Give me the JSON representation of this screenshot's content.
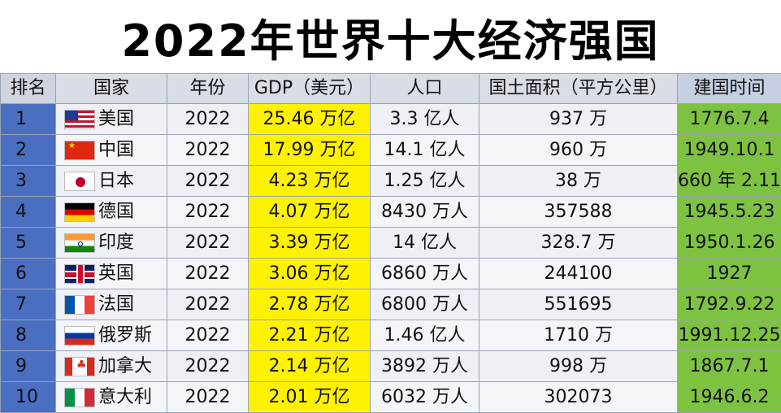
{
  "title": "2022年世界十大经济强国",
  "headers": {
    "rank": "排名",
    "country": "国家",
    "year": "年份",
    "gdp": "GDP（美元）",
    "population": "人口",
    "area": "国土面积（平方公里）",
    "founded": "建国时间"
  },
  "rows": [
    {
      "rank": "1",
      "flag": "us-flag-icon",
      "country": "美国",
      "year": "2022",
      "gdp": "25.46 万亿",
      "population": "3.3 亿人",
      "area": "937 万",
      "founded": "1776.7.4"
    },
    {
      "rank": "2",
      "flag": "cn-flag-icon",
      "country": "中国",
      "year": "2022",
      "gdp": "17.99 万亿",
      "population": "14.1 亿人",
      "area": "960 万",
      "founded": "1949.10.1"
    },
    {
      "rank": "3",
      "flag": "jp-flag-icon",
      "country": "日本",
      "year": "2022",
      "gdp": "4.23 万亿",
      "population": "1.25 亿人",
      "area": "38 万",
      "founded": "660 年 2.11"
    },
    {
      "rank": "4",
      "flag": "de-flag-icon",
      "country": "德国",
      "year": "2022",
      "gdp": "4.07 万亿",
      "population": "8430 万人",
      "area": "357588",
      "founded": "1945.5.23"
    },
    {
      "rank": "5",
      "flag": "in-flag-icon",
      "country": "印度",
      "year": "2022",
      "gdp": "3.39 万亿",
      "population": "14 亿人",
      "area": "328.7 万",
      "founded": "1950.1.26"
    },
    {
      "rank": "6",
      "flag": "gb-flag-icon",
      "country": "英国",
      "year": "2022",
      "gdp": "3.06 万亿",
      "population": "6860 万人",
      "area": "244100",
      "founded": "1927"
    },
    {
      "rank": "7",
      "flag": "fr-flag-icon",
      "country": "法国",
      "year": "2022",
      "gdp": "2.78 万亿",
      "population": "6800 万人",
      "area": "551695",
      "founded": "1792.9.22"
    },
    {
      "rank": "8",
      "flag": "ru-flag-icon",
      "country": "俄罗斯",
      "year": "2022",
      "gdp": "2.21 万亿",
      "population": "1.46 亿人",
      "area": "1710 万",
      "founded": "1991.12.25"
    },
    {
      "rank": "9",
      "flag": "ca-flag-icon",
      "country": "加拿大",
      "year": "2022",
      "gdp": "2.14 万亿",
      "population": "3892 万人",
      "area": "998 万",
      "founded": "1867.7.1"
    },
    {
      "rank": "10",
      "flag": "it-flag-icon",
      "country": "意大利",
      "year": "2022",
      "gdp": "2.01 万亿",
      "population": "6032 万人",
      "area": "302073",
      "founded": "1946.6.2"
    }
  ],
  "colors": {
    "rank_column": "#4b6fc0",
    "gdp_highlight": "#fff200",
    "founded_column": "#7ec242",
    "header": "#d9dde6"
  }
}
